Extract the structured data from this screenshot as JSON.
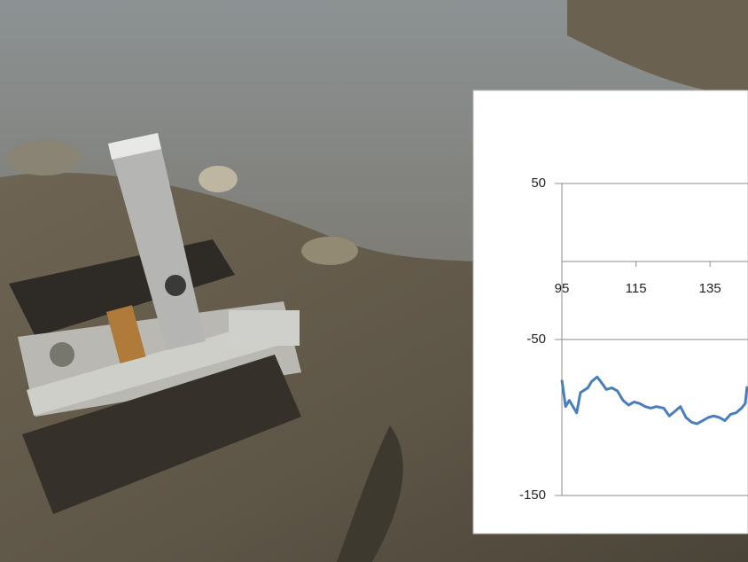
{
  "chart_data": {
    "type": "line",
    "x": [
      95,
      96,
      97,
      98,
      99,
      100,
      102,
      103,
      104.5,
      105.5,
      107,
      108.5,
      110,
      111.5,
      113,
      114.5,
      116,
      117.5,
      119,
      120.5,
      122.5,
      124,
      125.5,
      127,
      128.5,
      130,
      131.5,
      133,
      134.5,
      136,
      137.5,
      139,
      140.5,
      142,
      143.5,
      144.5,
      145
    ],
    "values": [
      -76,
      -93,
      -89,
      -93,
      -97,
      -84,
      -81,
      -77,
      -74,
      -77,
      -82,
      -81,
      -83,
      -89,
      -92,
      -90,
      -91,
      -93,
      -94,
      -93,
      -94,
      -99,
      -96,
      -93,
      -100,
      -103,
      -104,
      -102,
      -100,
      -99,
      -100,
      -102,
      -98,
      -97,
      -94,
      -91,
      -80
    ],
    "color": "#4a7ebb",
    "xlim": [
      95,
      145
    ],
    "xticks": [
      95,
      115,
      135
    ],
    "ylim": [
      -150,
      50
    ],
    "yticks": [
      50,
      -50,
      -150
    ],
    "grid": true
  }
}
